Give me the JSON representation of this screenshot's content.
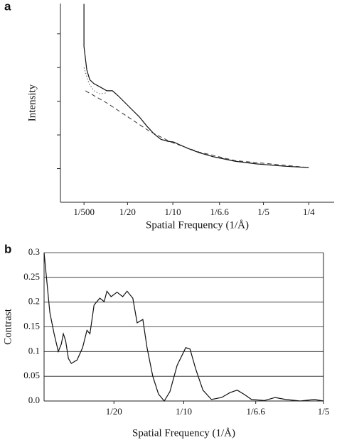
{
  "chart_data": [
    {
      "type": "line",
      "panel_label": "a",
      "xlabel": "Spatial Frequency (1/Å)",
      "ylabel": "Intensity",
      "xlim": [
        -0.024,
        0.278
      ],
      "ylim": [
        0,
        5.9
      ],
      "xticks": [
        {
          "value": 0.002,
          "label": "1/500"
        },
        {
          "value": 0.05,
          "label": "1/20"
        },
        {
          "value": 0.1,
          "label": "1/10"
        },
        {
          "value": 0.1515,
          "label": "1/6.6"
        },
        {
          "value": 0.2,
          "label": "1/5"
        },
        {
          "value": 0.25,
          "label": "1/4"
        }
      ],
      "yticks": [
        1,
        2,
        3,
        4,
        5
      ],
      "series": [
        {
          "style": "solid",
          "color": "#111111",
          "x": [
            0.002,
            0.002,
            0.005,
            0.0083,
            0.013,
            0.0193,
            0.0271,
            0.0334,
            0.0397,
            0.0475,
            0.0554,
            0.0632,
            0.0711,
            0.0789,
            0.0868,
            0.0946,
            0.1009,
            0.1072,
            0.1166,
            0.1292,
            0.1449,
            0.1684,
            0.192,
            0.2234,
            0.25
          ],
          "values": [
            5.89,
            4.63,
            3.94,
            3.64,
            3.52,
            3.43,
            3.31,
            3.31,
            3.16,
            2.95,
            2.74,
            2.53,
            2.27,
            2.04,
            1.87,
            1.81,
            1.79,
            1.71,
            1.6,
            1.47,
            1.35,
            1.22,
            1.14,
            1.07,
            1.03
          ]
        },
        {
          "style": "dotted",
          "color": "#555555",
          "x": [
            0.002,
            0.0075,
            0.013,
            0.0193,
            0.0271
          ],
          "values": [
            4.0,
            3.52,
            3.31,
            3.22,
            3.25
          ]
        },
        {
          "style": "dashed",
          "color": "#333333",
          "x": [
            0.0036,
            0.0271,
            0.0507,
            0.0742,
            0.0978,
            0.1292,
            0.1684,
            0.25
          ],
          "values": [
            3.31,
            2.95,
            2.53,
            2.11,
            1.79,
            1.49,
            1.24,
            1.03
          ]
        }
      ]
    },
    {
      "type": "line",
      "panel_label": "b",
      "xlabel": "Spatial Frequency (1/Å)",
      "ylabel": "Contrast",
      "xlim": [
        0,
        0.2
      ],
      "ylim": [
        0,
        0.3
      ],
      "grid": true,
      "xticks": [
        {
          "value": 0.05,
          "label": "1/20"
        },
        {
          "value": 0.1,
          "label": "1/10"
        },
        {
          "value": 0.1515,
          "label": "1/6.6"
        },
        {
          "value": 0.2,
          "label": "1/5"
        }
      ],
      "yticks": [
        {
          "value": 0,
          "label": "0.0"
        },
        0.05,
        0.1,
        0.15,
        0.2,
        0.25,
        0.3
      ],
      "series": [
        {
          "style": "solid",
          "color": "#111111",
          "x": [
            0,
            0.0041,
            0.0072,
            0.0102,
            0.0123,
            0.0138,
            0.0154,
            0.0174,
            0.0195,
            0.0236,
            0.0276,
            0.0307,
            0.0328,
            0.0358,
            0.0399,
            0.043,
            0.045,
            0.048,
            0.0522,
            0.0563,
            0.0594,
            0.0635,
            0.0666,
            0.0707,
            0.0737,
            0.0778,
            0.0819,
            0.086,
            0.0901,
            0.0952,
            0.1014,
            0.1045,
            0.1085,
            0.1137,
            0.1198,
            0.127,
            0.1331,
            0.1382,
            0.1434,
            0.1485,
            0.1577,
            0.1654,
            0.1731,
            0.1833,
            0.1935,
            0.2
          ],
          "values": [
            0.3,
            0.179,
            0.136,
            0.1,
            0.115,
            0.136,
            0.122,
            0.086,
            0.076,
            0.083,
            0.108,
            0.143,
            0.136,
            0.194,
            0.208,
            0.201,
            0.222,
            0.211,
            0.22,
            0.211,
            0.222,
            0.208,
            0.158,
            0.165,
            0.108,
            0.05,
            0.014,
            0,
            0.019,
            0.072,
            0.108,
            0.105,
            0.065,
            0.022,
            0.003,
            0.007,
            0.017,
            0.022,
            0.013,
            0.003,
            0.001,
            0.007,
            0.003,
            0,
            0.003,
            0
          ]
        }
      ]
    }
  ]
}
